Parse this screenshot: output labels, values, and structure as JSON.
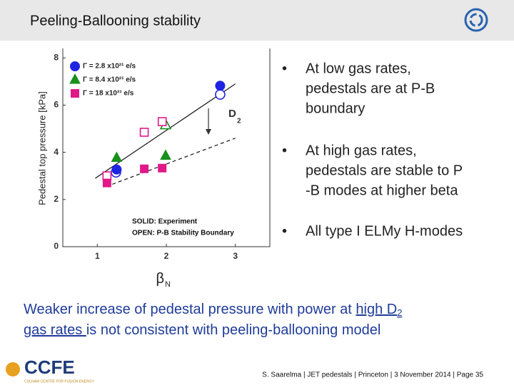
{
  "header": {
    "title": "Peeling-Ballooning stability"
  },
  "chart_data": {
    "type": "scatter",
    "x_label": "β",
    "x_label_sub": "N",
    "y_label": "Pedestal top pressure [kPa]",
    "xlim": [
      0.5,
      3.5
    ],
    "ylim": [
      0,
      8.4
    ],
    "xticks": [
      1,
      2,
      3
    ],
    "yticks": [
      0,
      2,
      4,
      6,
      8
    ],
    "series": [
      {
        "name": "Γ = 2.8 x10²¹ e/s",
        "color": "#1f24e0",
        "marker": "circle",
        "experiment": {
          "x": [
            2.78,
            1.28
          ],
          "values": [
            6.82,
            3.27
          ]
        },
        "boundary": {
          "x": [
            2.78,
            1.27
          ],
          "values": [
            6.45,
            3.15
          ]
        }
      },
      {
        "name": "Γ = 8.4 x10²¹ e/s",
        "color": "#17901c",
        "marker": "triangle",
        "experiment": {
          "x": [
            1.28,
            1.99
          ],
          "values": [
            3.76,
            3.85
          ]
        },
        "boundary": {
          "x": [
            1.99
          ],
          "values": [
            5.15
          ]
        }
      },
      {
        "name": "Γ = 18 x10²¹ e/s",
        "color": "#e0198a",
        "marker": "square",
        "experiment": {
          "x": [
            1.14,
            1.68,
            1.94
          ],
          "values": [
            2.7,
            3.3,
            3.33
          ]
        },
        "boundary": {
          "x": [
            1.14,
            1.68,
            1.94
          ],
          "values": [
            3.0,
            4.85,
            5.3
          ]
        }
      }
    ],
    "fit_lines": [
      {
        "style": "solid",
        "x": [
          0.97,
          3.0
        ],
        "values": [
          2.9,
          6.9
        ]
      },
      {
        "style": "dashed",
        "x": [
          1.13,
          3.0
        ],
        "values": [
          2.55,
          4.6
        ]
      }
    ],
    "annotations": {
      "arrow_label": "D",
      "arrow_label_sub": "2",
      "solid_note": "SOLID: Experiment",
      "open_note": "OPEN: P-B Stability Boundary"
    }
  },
  "bullets": [
    [
      "At low gas rates,",
      "pedestals are at P-B",
      "boundary"
    ],
    [
      "At high gas rates,",
      "pedestals are stable to P",
      "-B modes at higher beta"
    ],
    [
      "All type I ELMy H-modes"
    ]
  ],
  "bullet_symbol": "•",
  "conclusion": {
    "line1": [
      "Weaker increase of pedestal pressure with power at ",
      "high D",
      "2"
    ],
    "line2": [
      "gas rates ",
      "is not consistent with peeling-ballooning model"
    ]
  },
  "footer": {
    "logo": "CCFE",
    "logo_sub": "CULHAM CENTRE FOR FUSION ENERGY",
    "credit": "S. Saarelma | JET pedestals | Princeton | 3 November 2014 | Page 35"
  }
}
